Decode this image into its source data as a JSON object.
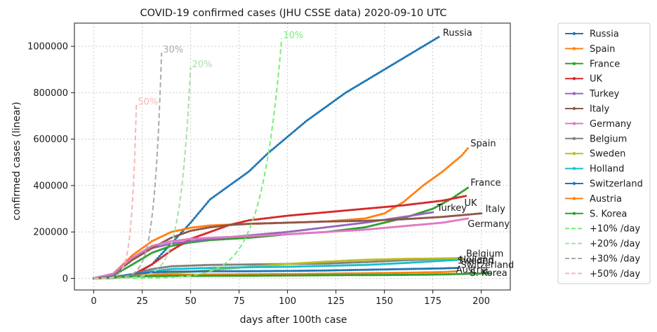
{
  "chart_data": {
    "type": "line",
    "title": "COVID-19 confirmed cases (JHU CSSE data) 2020-09-10 UTC",
    "xlabel": "days after 100th case",
    "ylabel": "confirmed cases (linear)",
    "xlim": [
      -10,
      215
    ],
    "ylim": [
      -50000,
      1100000
    ],
    "xticks": [
      0,
      25,
      50,
      75,
      100,
      125,
      150,
      175,
      200
    ],
    "yticks": [
      0,
      200000,
      400000,
      600000,
      800000,
      1000000
    ],
    "grid": true,
    "legend_position": "outside-right",
    "series": [
      {
        "name": "Russia",
        "color": "#1f77b4",
        "style": "marker",
        "annotation": "Russia",
        "points": [
          [
            0,
            0
          ],
          [
            10,
            1000
          ],
          [
            20,
            10000
          ],
          [
            30,
            60000
          ],
          [
            40,
            150000
          ],
          [
            50,
            240000
          ],
          [
            60,
            340000
          ],
          [
            70,
            400000
          ],
          [
            80,
            460000
          ],
          [
            90,
            540000
          ],
          [
            100,
            610000
          ],
          [
            110,
            680000
          ],
          [
            120,
            740000
          ],
          [
            130,
            800000
          ],
          [
            140,
            850000
          ],
          [
            150,
            900000
          ],
          [
            160,
            950000
          ],
          [
            170,
            1000000
          ],
          [
            178,
            1040000
          ]
        ]
      },
      {
        "name": "Spain",
        "color": "#ff7f0e",
        "style": "marker",
        "annotation": "Spain",
        "points": [
          [
            0,
            0
          ],
          [
            10,
            20000
          ],
          [
            20,
            100000
          ],
          [
            30,
            160000
          ],
          [
            40,
            200000
          ],
          [
            50,
            218000
          ],
          [
            60,
            228000
          ],
          [
            80,
            235000
          ],
          [
            100,
            240000
          ],
          [
            120,
            245000
          ],
          [
            140,
            258000
          ],
          [
            150,
            280000
          ],
          [
            160,
            330000
          ],
          [
            170,
            400000
          ],
          [
            180,
            460000
          ],
          [
            190,
            530000
          ],
          [
            193,
            560000
          ]
        ]
      },
      {
        "name": "France",
        "color": "#2ca02c",
        "style": "marker",
        "annotation": "France",
        "points": [
          [
            0,
            0
          ],
          [
            10,
            12000
          ],
          [
            20,
            60000
          ],
          [
            30,
            110000
          ],
          [
            40,
            140000
          ],
          [
            50,
            155000
          ],
          [
            60,
            165000
          ],
          [
            80,
            175000
          ],
          [
            100,
            190000
          ],
          [
            120,
            200000
          ],
          [
            140,
            220000
          ],
          [
            160,
            260000
          ],
          [
            175,
            300000
          ],
          [
            185,
            345000
          ],
          [
            193,
            390000
          ]
        ]
      },
      {
        "name": "UK",
        "color": "#d62728",
        "style": "marker",
        "annotation": "UK",
        "points": [
          [
            0,
            0
          ],
          [
            10,
            3000
          ],
          [
            20,
            15000
          ],
          [
            30,
            60000
          ],
          [
            40,
            120000
          ],
          [
            50,
            170000
          ],
          [
            60,
            200000
          ],
          [
            70,
            230000
          ],
          [
            80,
            250000
          ],
          [
            90,
            260000
          ],
          [
            100,
            270000
          ],
          [
            120,
            285000
          ],
          [
            140,
            300000
          ],
          [
            160,
            315000
          ],
          [
            180,
            335000
          ],
          [
            192,
            355000
          ]
        ]
      },
      {
        "name": "Turkey",
        "color": "#9467bd",
        "style": "marker",
        "annotation": "Turkey",
        "points": [
          [
            0,
            0
          ],
          [
            10,
            15000
          ],
          [
            20,
            80000
          ],
          [
            30,
            130000
          ],
          [
            40,
            150000
          ],
          [
            50,
            160000
          ],
          [
            60,
            170000
          ],
          [
            80,
            185000
          ],
          [
            100,
            200000
          ],
          [
            120,
            220000
          ],
          [
            140,
            240000
          ],
          [
            160,
            265000
          ],
          [
            175,
            285000
          ]
        ]
      },
      {
        "name": "Italy",
        "color": "#8c564b",
        "style": "marker",
        "annotation": "Italy",
        "points": [
          [
            0,
            0
          ],
          [
            10,
            20000
          ],
          [
            20,
            80000
          ],
          [
            30,
            130000
          ],
          [
            40,
            175000
          ],
          [
            50,
            205000
          ],
          [
            60,
            220000
          ],
          [
            70,
            230000
          ],
          [
            80,
            235000
          ],
          [
            100,
            240000
          ],
          [
            120,
            245000
          ],
          [
            140,
            248000
          ],
          [
            160,
            255000
          ],
          [
            180,
            265000
          ],
          [
            200,
            280000
          ]
        ]
      },
      {
        "name": "Germany",
        "color": "#e377c2",
        "style": "marker",
        "annotation": "Germany",
        "points": [
          [
            0,
            0
          ],
          [
            10,
            20000
          ],
          [
            20,
            90000
          ],
          [
            30,
            140000
          ],
          [
            40,
            160000
          ],
          [
            50,
            170000
          ],
          [
            60,
            175000
          ],
          [
            80,
            182000
          ],
          [
            100,
            190000
          ],
          [
            120,
            200000
          ],
          [
            140,
            210000
          ],
          [
            160,
            225000
          ],
          [
            180,
            240000
          ],
          [
            193,
            258000
          ]
        ]
      },
      {
        "name": "Belgium",
        "color": "#7f7f7f",
        "style": "marker",
        "annotation": "Belgium",
        "points": [
          [
            0,
            0
          ],
          [
            10,
            4000
          ],
          [
            20,
            18000
          ],
          [
            30,
            40000
          ],
          [
            40,
            52000
          ],
          [
            60,
            58000
          ],
          [
            80,
            60000
          ],
          [
            100,
            62000
          ],
          [
            120,
            64000
          ],
          [
            140,
            70000
          ],
          [
            160,
            78000
          ],
          [
            180,
            84000
          ],
          [
            190,
            88000
          ]
        ]
      },
      {
        "name": "Sweden",
        "color": "#bcbd22",
        "style": "marker",
        "annotation": "Sweden",
        "points": [
          [
            0,
            0
          ],
          [
            10,
            2000
          ],
          [
            20,
            8000
          ],
          [
            30,
            16000
          ],
          [
            40,
            22000
          ],
          [
            60,
            35000
          ],
          [
            80,
            50000
          ],
          [
            100,
            62000
          ],
          [
            120,
            72000
          ],
          [
            140,
            80000
          ],
          [
            160,
            84000
          ],
          [
            180,
            86000
          ],
          [
            190,
            87000
          ]
        ]
      },
      {
        "name": "Holland",
        "color": "#17becf",
        "style": "marker",
        "annotation": "Holland",
        "points": [
          [
            0,
            0
          ],
          [
            10,
            3000
          ],
          [
            20,
            15000
          ],
          [
            30,
            30000
          ],
          [
            40,
            40000
          ],
          [
            60,
            45000
          ],
          [
            80,
            48000
          ],
          [
            100,
            50000
          ],
          [
            120,
            54000
          ],
          [
            140,
            58000
          ],
          [
            160,
            66000
          ],
          [
            180,
            76000
          ],
          [
            188,
            80000
          ]
        ]
      },
      {
        "name": "Switzerland",
        "color": "#1f77b4",
        "style": "marker",
        "annotation": "Switzerland",
        "points": [
          [
            0,
            0
          ],
          [
            10,
            6000
          ],
          [
            20,
            18000
          ],
          [
            30,
            26000
          ],
          [
            40,
            29000
          ],
          [
            60,
            30500
          ],
          [
            80,
            31000
          ],
          [
            100,
            32000
          ],
          [
            120,
            34000
          ],
          [
            140,
            37000
          ],
          [
            160,
            40000
          ],
          [
            180,
            43000
          ],
          [
            188,
            45000
          ]
        ]
      },
      {
        "name": "Austria",
        "color": "#ff7f0e",
        "style": "marker",
        "annotation": "Austria",
        "points": [
          [
            0,
            0
          ],
          [
            10,
            4000
          ],
          [
            20,
            11000
          ],
          [
            30,
            14000
          ],
          [
            40,
            15500
          ],
          [
            60,
            16500
          ],
          [
            80,
            17500
          ],
          [
            100,
            18500
          ],
          [
            120,
            20000
          ],
          [
            140,
            22000
          ],
          [
            160,
            24000
          ],
          [
            180,
            27000
          ],
          [
            187,
            30000
          ]
        ]
      },
      {
        "name": "S. Korea",
        "color": "#2ca02c",
        "style": "marker",
        "annotation": "S. Korea",
        "points": [
          [
            0,
            0
          ],
          [
            10,
            4000
          ],
          [
            20,
            8000
          ],
          [
            30,
            9500
          ],
          [
            40,
            10300
          ],
          [
            60,
            10800
          ],
          [
            80,
            11500
          ],
          [
            100,
            12400
          ],
          [
            120,
            13500
          ],
          [
            140,
            14200
          ],
          [
            160,
            15000
          ],
          [
            180,
            17000
          ],
          [
            195,
            20000
          ],
          [
            205,
            21900
          ]
        ]
      },
      {
        "name": "+10% /day",
        "color": "#77ee77",
        "style": "dashed",
        "annotation": "10%",
        "growth": 1.1,
        "xend": 97
      },
      {
        "name": "+20% /day",
        "color": "#aaddaa",
        "style": "dashed",
        "annotation": "20%",
        "growth": 1.2,
        "xend": 50
      },
      {
        "name": "+30% /day",
        "color": "#aaaaaa",
        "style": "dashed",
        "annotation": "30%",
        "growth": 1.3,
        "xend": 35
      },
      {
        "name": "+50% /day",
        "color": "#f4b8b8",
        "style": "dashed",
        "annotation": "50%",
        "growth": 1.5,
        "xend": 22
      }
    ]
  }
}
